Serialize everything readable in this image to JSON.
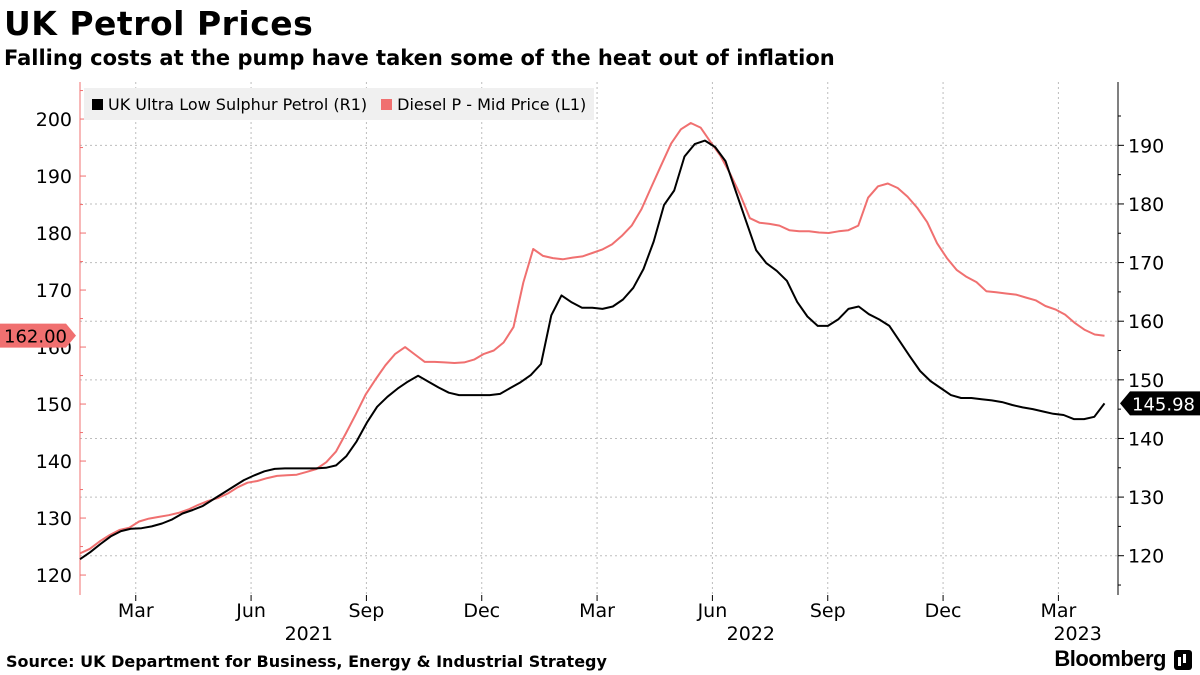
{
  "header": {
    "title": "UK Petrol Prices",
    "subtitle": "Falling costs at the pump have taken some of the heat out of inflation"
  },
  "footer": {
    "source": "Source: UK Department for Business, Energy & Industrial Strategy",
    "brand": "Bloomberg"
  },
  "colors": {
    "petrol": "#000000",
    "diesel": "#f07070",
    "grid": "#bdbdbd"
  },
  "chart_data": {
    "type": "line",
    "title": "UK Petrol Prices",
    "subtitle": "Falling costs at the pump have taken some of the heat out of inflation",
    "x_start_month": "2021-01-18",
    "x_tick_labels": [
      "Mar",
      "Jun",
      "Sep",
      "Dec",
      "Mar",
      "Jun",
      "Sep",
      "Dec",
      "Mar"
    ],
    "x_tick_month_index": [
      1.45,
      4.45,
      7.45,
      10.45,
      13.45,
      16.45,
      19.45,
      22.45,
      25.45
    ],
    "year_labels": [
      {
        "label": "2021",
        "month_index": 5.95
      },
      {
        "label": "2022",
        "month_index": 17.45
      },
      {
        "label": "2023",
        "month_index": 25.95
      }
    ],
    "x_range_months": [
      0,
      27.0
    ],
    "left_axis": {
      "series": "Diesel P - Mid Price (L1)",
      "ticks": [
        120,
        130,
        140,
        150,
        160,
        170,
        180,
        190,
        200
      ],
      "range": [
        116.5,
        206.5
      ]
    },
    "right_axis": {
      "series": "UK Ultra Low Sulphur Petrol (R1)",
      "ticks": [
        120,
        130,
        140,
        150,
        160,
        170,
        180,
        190
      ],
      "range": [
        113.3,
        200.8
      ]
    },
    "legend": "top-left",
    "series": [
      {
        "name": "UK Ultra Low Sulphur Petrol (R1)",
        "axis": "right",
        "last_value": "145.98",
        "values": [
          119.4,
          120.6,
          122.0,
          123.3,
          124.2,
          124.6,
          124.7,
          125.0,
          125.5,
          126.2,
          127.2,
          127.8,
          128.5,
          129.6,
          130.7,
          131.8,
          132.9,
          133.7,
          134.4,
          134.8,
          134.9,
          134.9,
          134.9,
          134.9,
          135.0,
          135.4,
          137.0,
          139.5,
          142.7,
          145.4,
          147.1,
          148.5,
          149.7,
          150.7,
          149.7,
          148.7,
          147.8,
          147.4,
          147.4,
          147.4,
          147.4,
          147.6,
          148.6,
          149.6,
          150.8,
          152.7,
          161.0,
          164.4,
          163.2,
          162.3,
          162.3,
          162.1,
          162.5,
          163.7,
          165.7,
          168.9,
          173.6,
          179.8,
          182.3,
          188.1,
          190.2,
          190.8,
          189.7,
          187.3,
          182.2,
          177.1,
          172.1,
          169.9,
          168.6,
          166.9,
          163.3,
          160.8,
          159.2,
          159.2,
          160.3,
          162.1,
          162.5,
          161.2,
          160.3,
          159.2,
          156.6,
          154.0,
          151.5,
          149.8,
          148.6,
          147.4,
          146.9,
          146.9,
          146.7,
          146.5,
          146.2,
          145.7,
          145.3,
          145.0,
          144.6,
          144.2,
          144.0,
          143.3,
          143.3,
          143.7,
          145.98
        ]
      },
      {
        "name": "Diesel P - Mid Price (L1)",
        "axis": "left",
        "last_value": "162.00",
        "values": [
          123.8,
          124.6,
          125.9,
          127.0,
          127.9,
          128.3,
          129.4,
          129.9,
          130.2,
          130.5,
          130.9,
          131.5,
          132.3,
          133.0,
          133.5,
          134.3,
          135.4,
          136.2,
          136.5,
          137.0,
          137.4,
          137.5,
          137.6,
          138.1,
          138.6,
          139.8,
          141.7,
          144.9,
          148.2,
          151.7,
          154.3,
          156.8,
          158.8,
          160.0,
          158.7,
          157.4,
          157.4,
          157.3,
          157.2,
          157.3,
          157.8,
          158.8,
          159.4,
          160.8,
          163.5,
          171.3,
          177.2,
          176.0,
          175.6,
          175.4,
          175.7,
          175.9,
          176.5,
          177.1,
          178.0,
          179.5,
          181.3,
          184.2,
          188.1,
          191.9,
          195.7,
          198.2,
          199.3,
          198.5,
          196.0,
          193.6,
          190.4,
          186.8,
          182.6,
          181.8,
          181.6,
          181.3,
          180.5,
          180.3,
          180.3,
          180.1,
          180.0,
          180.3,
          180.5,
          181.3,
          186.2,
          188.2,
          188.7,
          187.9,
          186.4,
          184.4,
          181.9,
          178.2,
          175.6,
          173.5,
          172.3,
          171.4,
          169.8,
          169.6,
          169.4,
          169.2,
          168.7,
          168.2,
          167.2,
          166.6,
          165.7,
          164.2,
          163.0,
          162.2,
          162.0
        ]
      }
    ]
  }
}
